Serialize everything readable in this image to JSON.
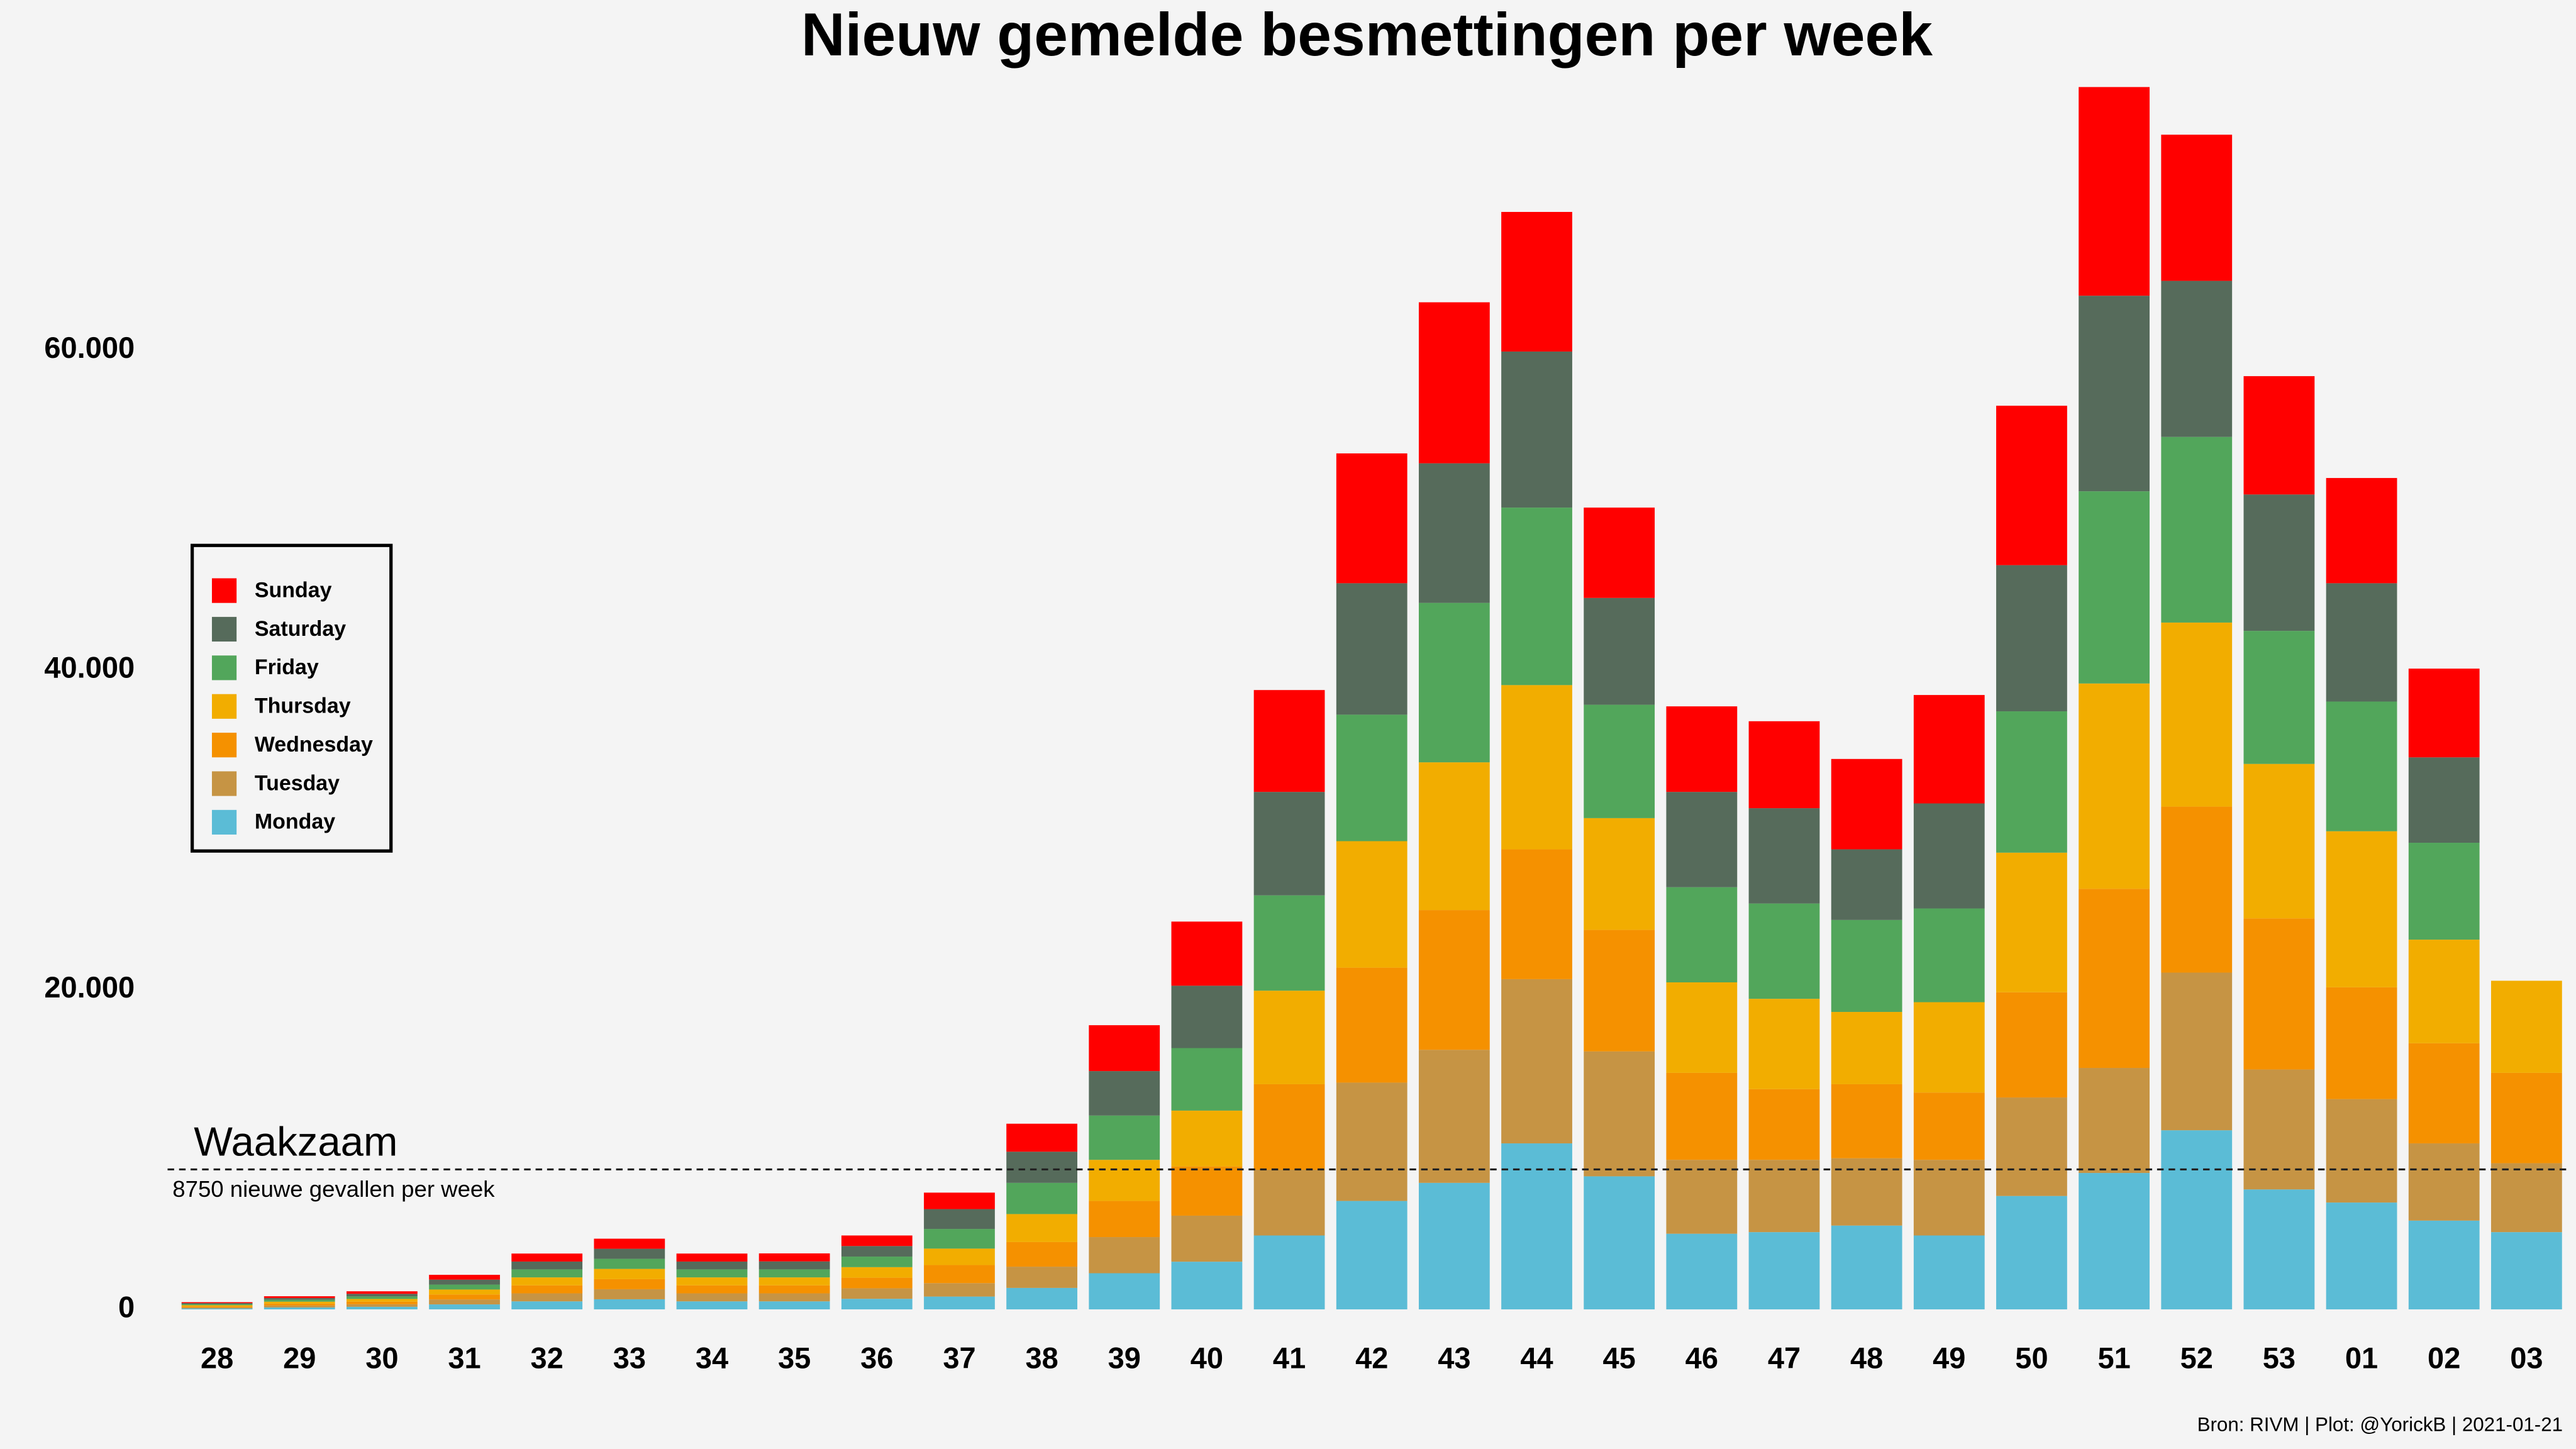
{
  "chart_data": {
    "type": "stacked_bar",
    "title": "Nieuw gemelde besmettingen per week",
    "source": "Bron: RIVM | Plot: @YorickB |  2021-01-21",
    "categories": [
      "28",
      "29",
      "30",
      "31",
      "32",
      "33",
      "34",
      "35",
      "36",
      "37",
      "38",
      "39",
      "40",
      "41",
      "42",
      "43",
      "44",
      "45",
      "46",
      "47",
      "48",
      "49",
      "50",
      "51",
      "52",
      "53",
      "01",
      "02",
      "03"
    ],
    "series": [
      {
        "name": "Monday",
        "color": "#5bbcd6",
        "values": [
          60,
          120,
          160,
          310,
          500,
          630,
          500,
          500,
          660,
          800,
          1340,
          2260,
          2980,
          4620,
          6780,
          7910,
          10380,
          8320,
          4730,
          4830,
          5240,
          4620,
          7090,
          8530,
          11200,
          7500,
          6680,
          5550,
          4830
        ]
      },
      {
        "name": "Tuesday",
        "color": "#c69444",
        "values": [
          60,
          120,
          160,
          310,
          500,
          630,
          500,
          500,
          660,
          840,
          1330,
          2260,
          2880,
          4110,
          7400,
          8320,
          10270,
          7810,
          4620,
          4520,
          4210,
          4730,
          6160,
          6570,
          9860,
          7500,
          6470,
          4830,
          4310
        ]
      },
      {
        "name": "Wednesday",
        "color": "#f59100",
        "values": [
          70,
          120,
          160,
          310,
          500,
          630,
          500,
          500,
          660,
          1130,
          1540,
          2260,
          3080,
          5350,
          7190,
          8740,
          8120,
          7600,
          5440,
          4420,
          4630,
          4210,
          6580,
          11200,
          10380,
          9450,
          6990,
          6260,
          5650
        ]
      },
      {
        "name": "Thursday",
        "color": "#f2ad00",
        "values": [
          70,
          120,
          170,
          310,
          500,
          640,
          500,
          500,
          660,
          1030,
          1750,
          2570,
          3490,
          5850,
          7910,
          9240,
          10270,
          6990,
          5660,
          5650,
          4520,
          5650,
          8730,
          12840,
          11510,
          9660,
          9760,
          6480,
          5760
        ]
      },
      {
        "name": "Friday",
        "color": "#52a65b",
        "values": [
          70,
          120,
          160,
          310,
          500,
          630,
          500,
          500,
          660,
          1230,
          1950,
          2770,
          3910,
          5960,
          7910,
          9970,
          11100,
          7090,
          5950,
          5960,
          5750,
          5860,
          8840,
          12020,
          11610,
          8320,
          8110,
          6060,
          null
        ]
      },
      {
        "name": "Saturday",
        "color": "#566b5b",
        "values": [
          60,
          110,
          160,
          310,
          490,
          630,
          490,
          500,
          660,
          1240,
          1950,
          2780,
          3900,
          6470,
          8220,
          8730,
          9760,
          6680,
          5960,
          5960,
          4420,
          6570,
          9140,
          12230,
          9760,
          8530,
          7400,
          5340,
          null
        ]
      },
      {
        "name": "Sunday",
        "color": "#ff0000",
        "values": [
          60,
          110,
          160,
          300,
          500,
          630,
          500,
          500,
          660,
          1030,
          1750,
          2870,
          4010,
          6370,
          8120,
          10070,
          8730,
          5650,
          5350,
          5440,
          5650,
          6780,
          9970,
          13050,
          9140,
          7400,
          6580,
          5550,
          null
        ]
      }
    ],
    "ylim": [
      0,
      78000
    ],
    "yticks": [
      0,
      {
        "value": 20000,
        "label": "20.000"
      },
      {
        "value": 40000,
        "label": "40.000"
      },
      {
        "value": 60000,
        "label": "60.000"
      }
    ],
    "threshold": {
      "value": 8750,
      "label": "Waakzaam",
      "text": "8750 nieuwe gevallen per week"
    },
    "legend": "left"
  }
}
